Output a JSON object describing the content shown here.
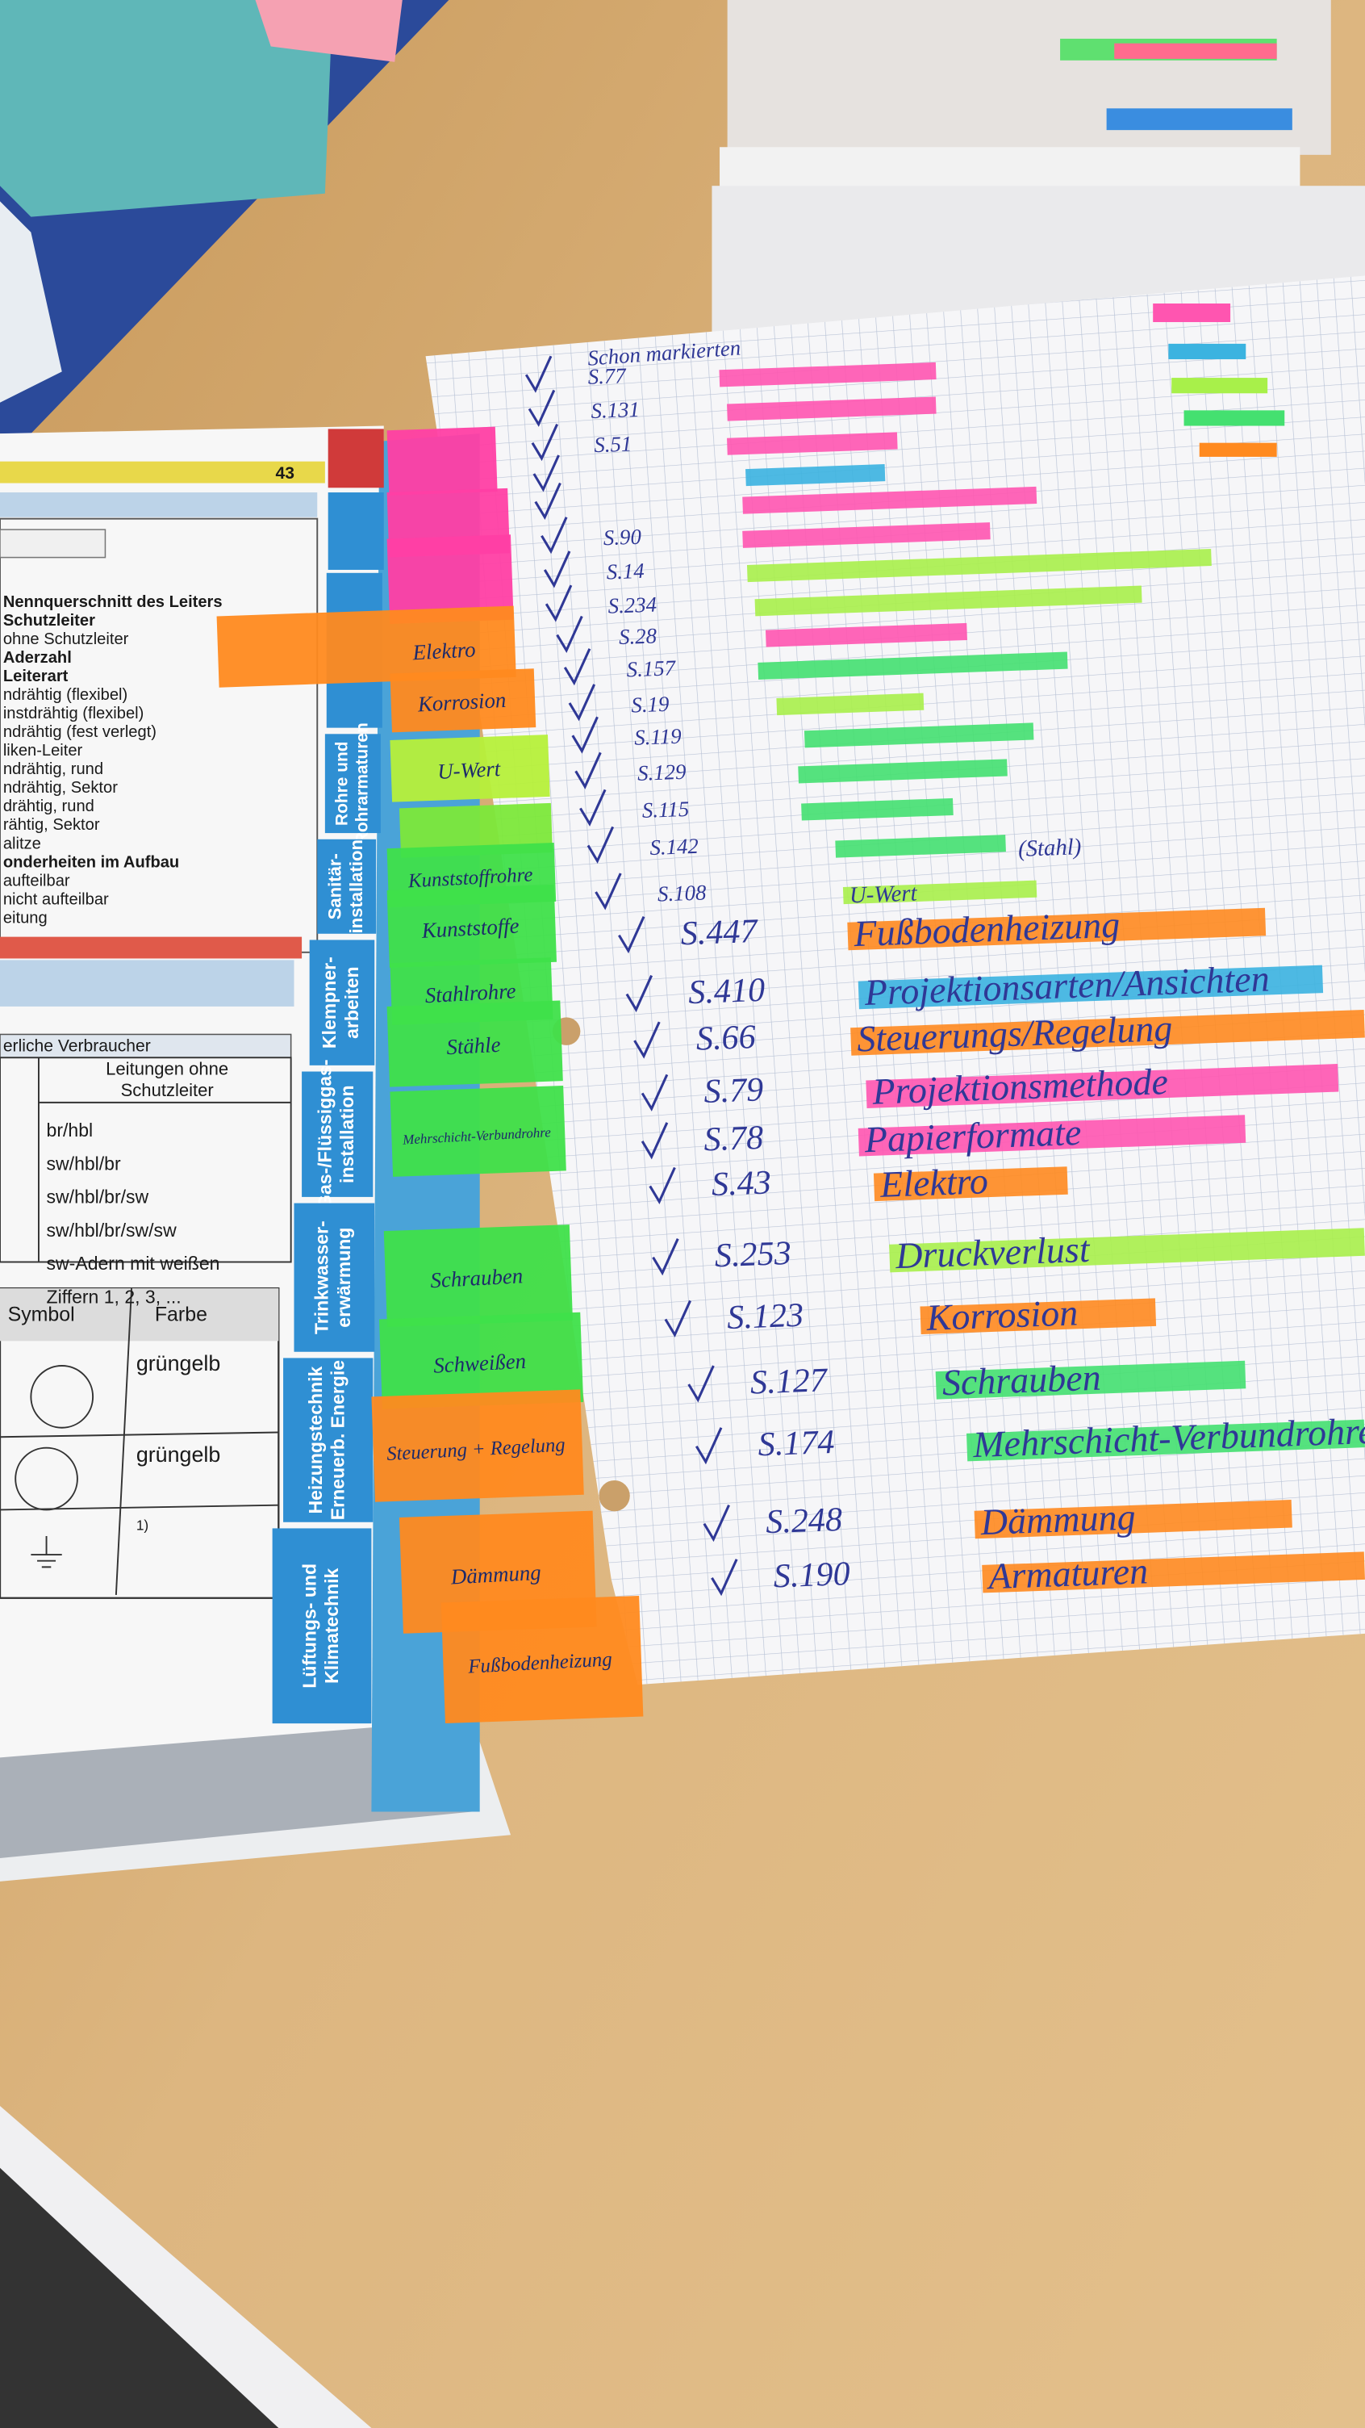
{
  "book": {
    "page_number": "43",
    "left_lines": [
      "Nennquerschnitt des Leiters",
      "Schutzleiter",
      "ohne Schutzleiter",
      "Aderzahl",
      "Leiterart",
      "ndrähtig (flexibel)",
      "instdrähtig (flexibel)",
      "ndrähtig (fest verlegt)",
      "liken-Leiter",
      "ndrähtig, rund",
      "ndrähtig, Sektor",
      "drähtig, rund",
      "rähtig, Sektor",
      "alitze",
      "onderheiten im Aufbau",
      "aufteilbar",
      "nicht aufteilbar",
      "eitung"
    ],
    "table_caption": "erliche Verbraucher",
    "table_header": [
      "Leitungen ohne",
      "Schutzleiter"
    ],
    "table_rows": [
      "br/hbl",
      "sw/hbl/br",
      "sw/hbl/br/sw",
      "sw/hbl/br/sw/sw",
      "sw-Adern mit weißen",
      "Ziffern 1, 2, 3, ..."
    ],
    "symbol_header": [
      "Symbol",
      "Farbe"
    ],
    "symbol_rows": [
      "grüngelb",
      "grüngelb",
      "1)"
    ],
    "side_tabs": [
      {
        "lines": [
          "Rohre und",
          "Rohrarmaturen"
        ]
      },
      {
        "lines": [
          "Sanitär-",
          "installation"
        ]
      },
      {
        "lines": [
          "Klempner-",
          "arbeiten"
        ]
      },
      {
        "lines": [
          "Gas-/Flüssiggas-",
          "installation"
        ]
      },
      {
        "lines": [
          "Trinkwasser-",
          "erwärmung"
        ]
      },
      {
        "lines": [
          "Heizungstechnik",
          "Erneuerb. Energie"
        ]
      },
      {
        "lines": [
          "Lüftungs- und",
          "Klimatechnik"
        ]
      }
    ]
  },
  "sticky_tabs": [
    {
      "color": "#ff3fa4"
    },
    {
      "color": "#ff3fa4"
    },
    {
      "color": "#ff3fa4"
    },
    {
      "label": "Elektro",
      "color": "#ff8a1f"
    },
    {
      "label": "Korrosion",
      "color": "#ff8a1f"
    },
    {
      "label": "U-Wert",
      "color": "#b6f03a"
    },
    {
      "color": "#7ce83a"
    },
    {
      "label": "Kunststoffrohre",
      "color": "#3fe04a"
    },
    {
      "label": "Kunststoffe",
      "color": "#3fe04a"
    },
    {
      "label": "Stahlrohre",
      "color": "#3fe04a"
    },
    {
      "label": "Stähle",
      "color": "#3fe04a"
    },
    {
      "label": "Mehrschicht-Verbundrohre",
      "color": "#3fe04a"
    },
    {
      "label": "Schrauben",
      "color": "#3fe04a"
    },
    {
      "label": "Schweißen",
      "color": "#3fe04a"
    },
    {
      "label": "Steuerung + Regelung",
      "color": "#ff8a1f"
    },
    {
      "label": "Dämmung",
      "color": "#ff8a1f"
    },
    {
      "label": "Fußbodenheizung",
      "color": "#ff8a1f"
    }
  ],
  "notes": {
    "title": "Schon markierten",
    "entries": [
      {
        "page": "S.77",
        "color": "#ff55b0"
      },
      {
        "page": "S.131",
        "color": "#ff55b0"
      },
      {
        "page": "S.51",
        "color": "#ff55b0"
      },
      {
        "color": "#3bb3e0"
      },
      {
        "color": "#ff55b0"
      },
      {
        "page": "S.90",
        "color": "#ff55b0"
      },
      {
        "page": "S.14",
        "color": "#a8f04a"
      },
      {
        "page": "S.234",
        "color": "#a8f04a"
      },
      {
        "page": "S.28",
        "color": "#ff55b0"
      },
      {
        "page": "S.157",
        "color": "#44e070"
      },
      {
        "page": "S.19",
        "color": "#a8f04a"
      },
      {
        "page": "S.119",
        "color": "#44e070"
      },
      {
        "page": "S.129",
        "color": "#44e070"
      },
      {
        "page": "S.115",
        "color": "#44e070"
      },
      {
        "page": "S.142",
        "label": "(Stahl)",
        "color": "#44e070"
      },
      {
        "page": "S.108",
        "label": "U-Wert",
        "color": "#a8f04a"
      },
      {
        "page": "S.447",
        "label": "Fußbodenheizung",
        "color": "#ff8a1f"
      },
      {
        "page": "S.410",
        "label": "Projektionsarten/Ansichten",
        "color": "#3bb3e0"
      },
      {
        "page": "S.66",
        "label": "Steuerungs/Regelung",
        "color": "#ff8a1f"
      },
      {
        "page": "S.79",
        "label": "Projektionsmethode",
        "color": "#ff55b0"
      },
      {
        "page": "S.78",
        "label": "Papierformate",
        "color": "#ff55b0"
      },
      {
        "page": "S.43",
        "label": "Elektro",
        "color": "#ff8a1f"
      },
      {
        "page": "S.253",
        "label": "Druckverlust",
        "color": "#a8f04a"
      },
      {
        "page": "S.123",
        "label": "Korrosion",
        "color": "#ff8a1f"
      },
      {
        "page": "S.127",
        "label": "Schrauben",
        "color": "#44e070"
      },
      {
        "page": "S.174",
        "label": "Mehrschicht-Verbundrohre",
        "color": "#44e070"
      },
      {
        "page": "S.248",
        "label": "Dämmung",
        "color": "#ff8a1f"
      },
      {
        "page": "S.190",
        "label": "Armaturen",
        "color": "#ff8a1f"
      }
    ]
  }
}
